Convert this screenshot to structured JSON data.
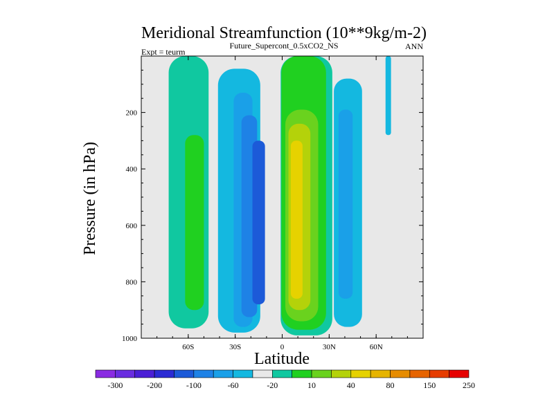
{
  "chart_data": {
    "type": "contour",
    "title": "Meridional Streamfunction (10**9kg/m-2)",
    "subtitle": "Future_Supercont_0.5xCO2_NS",
    "left_label": "Expt = teurm",
    "right_label": "ANN",
    "xlabel": "Latitude",
    "ylabel": "Pressure (in hPa)",
    "xlim": [
      -90,
      90
    ],
    "ylim": [
      1000,
      0
    ],
    "y_scale": "linear, inverted",
    "x_ticks": [
      {
        "value": -60,
        "label": "60S"
      },
      {
        "value": -30,
        "label": "30S"
      },
      {
        "value": 0,
        "label": "0"
      },
      {
        "value": 30,
        "label": "30N"
      },
      {
        "value": 60,
        "label": "60N"
      }
    ],
    "y_ticks": [
      {
        "value": 200,
        "label": "200"
      },
      {
        "value": 400,
        "label": "400"
      },
      {
        "value": 600,
        "label": "600"
      },
      {
        "value": 800,
        "label": "800"
      },
      {
        "value": 1000,
        "label": "1000"
      }
    ],
    "background_color": "#e8e8e8",
    "colorbar": {
      "placement": "bottom",
      "colors": [
        "#8a2be2",
        "#6a2de0",
        "#4b1fd6",
        "#2b2bd4",
        "#1c5ad8",
        "#1e82e6",
        "#1aa0e8",
        "#14b8e0",
        "#e8e8e8",
        "#10c8a0",
        "#20d020",
        "#6ad21e",
        "#b4d20a",
        "#e6d200",
        "#e6b400",
        "#e68c00",
        "#e66400",
        "#e63c00",
        "#e60000"
      ],
      "labels": [
        {
          "text": "-300",
          "index": 1
        },
        {
          "text": "-200",
          "index": 3
        },
        {
          "text": "-100",
          "index": 5
        },
        {
          "text": "-60",
          "index": 7
        },
        {
          "text": "-20",
          "index": 9
        },
        {
          "text": "10",
          "index": 11
        },
        {
          "text": "40",
          "index": 13
        },
        {
          "text": "80",
          "index": 15
        },
        {
          "text": "150",
          "index": 17
        },
        {
          "text": "250",
          "index": 19
        }
      ]
    },
    "cells": [
      {
        "name": "southern-cell-outer",
        "sign": "positive",
        "color": "#10c8a0",
        "lat": [
          -72.5,
          -47
        ],
        "p": [
          0,
          965
        ]
      },
      {
        "name": "southern-cell-core",
        "sign": "positive",
        "color": "#20d020",
        "lat": [
          -62,
          -50
        ],
        "p": [
          280,
          900
        ]
      },
      {
        "name": "southern-negative-outer",
        "sign": "negative",
        "color": "#14b8e0",
        "lat": [
          -41,
          -14
        ],
        "p": [
          45,
          980
        ]
      },
      {
        "name": "southern-negative-mid",
        "sign": "negative",
        "color": "#1aa0e8",
        "lat": [
          -31,
          -19
        ],
        "p": [
          130,
          960
        ]
      },
      {
        "name": "southern-negative-inner",
        "sign": "negative",
        "color": "#1e82e6",
        "lat": [
          -26,
          -16
        ],
        "p": [
          210,
          925
        ]
      },
      {
        "name": "southern-negative-core",
        "sign": "negative",
        "color": "#1c5ad8",
        "lat": [
          -19,
          -11
        ],
        "p": [
          300,
          880
        ]
      },
      {
        "name": "hadley-outer",
        "sign": "positive",
        "color": "#10c8a0",
        "lat": [
          -1,
          32
        ],
        "p": [
          0,
          990
        ]
      },
      {
        "name": "hadley-mid",
        "sign": "positive",
        "color": "#20d020",
        "lat": [
          -0.5,
          28
        ],
        "p": [
          0,
          970
        ]
      },
      {
        "name": "hadley-inner",
        "sign": "positive",
        "color": "#6ad21e",
        "lat": [
          2,
          23
        ],
        "p": [
          190,
          940
        ]
      },
      {
        "name": "hadley-core",
        "sign": "positive",
        "color": "#b4d20a",
        "lat": [
          4,
          18
        ],
        "p": [
          240,
          900
        ]
      },
      {
        "name": "hadley-peak",
        "sign": "positive",
        "color": "#e6d200",
        "lat": [
          5.5,
          13
        ],
        "p": [
          300,
          860
        ]
      },
      {
        "name": "northern-negative",
        "sign": "negative",
        "color": "#14b8e0",
        "lat": [
          33,
          51
        ],
        "p": [
          80,
          960
        ]
      },
      {
        "name": "northern-negative-core",
        "sign": "negative",
        "color": "#1aa0e8",
        "lat": [
          36,
          45
        ],
        "p": [
          190,
          860
        ]
      },
      {
        "name": "polar-negative-strip",
        "sign": "negative",
        "color": "#14b8e0",
        "lat": [
          66,
          69.5
        ],
        "p": [
          0,
          280
        ]
      }
    ]
  }
}
